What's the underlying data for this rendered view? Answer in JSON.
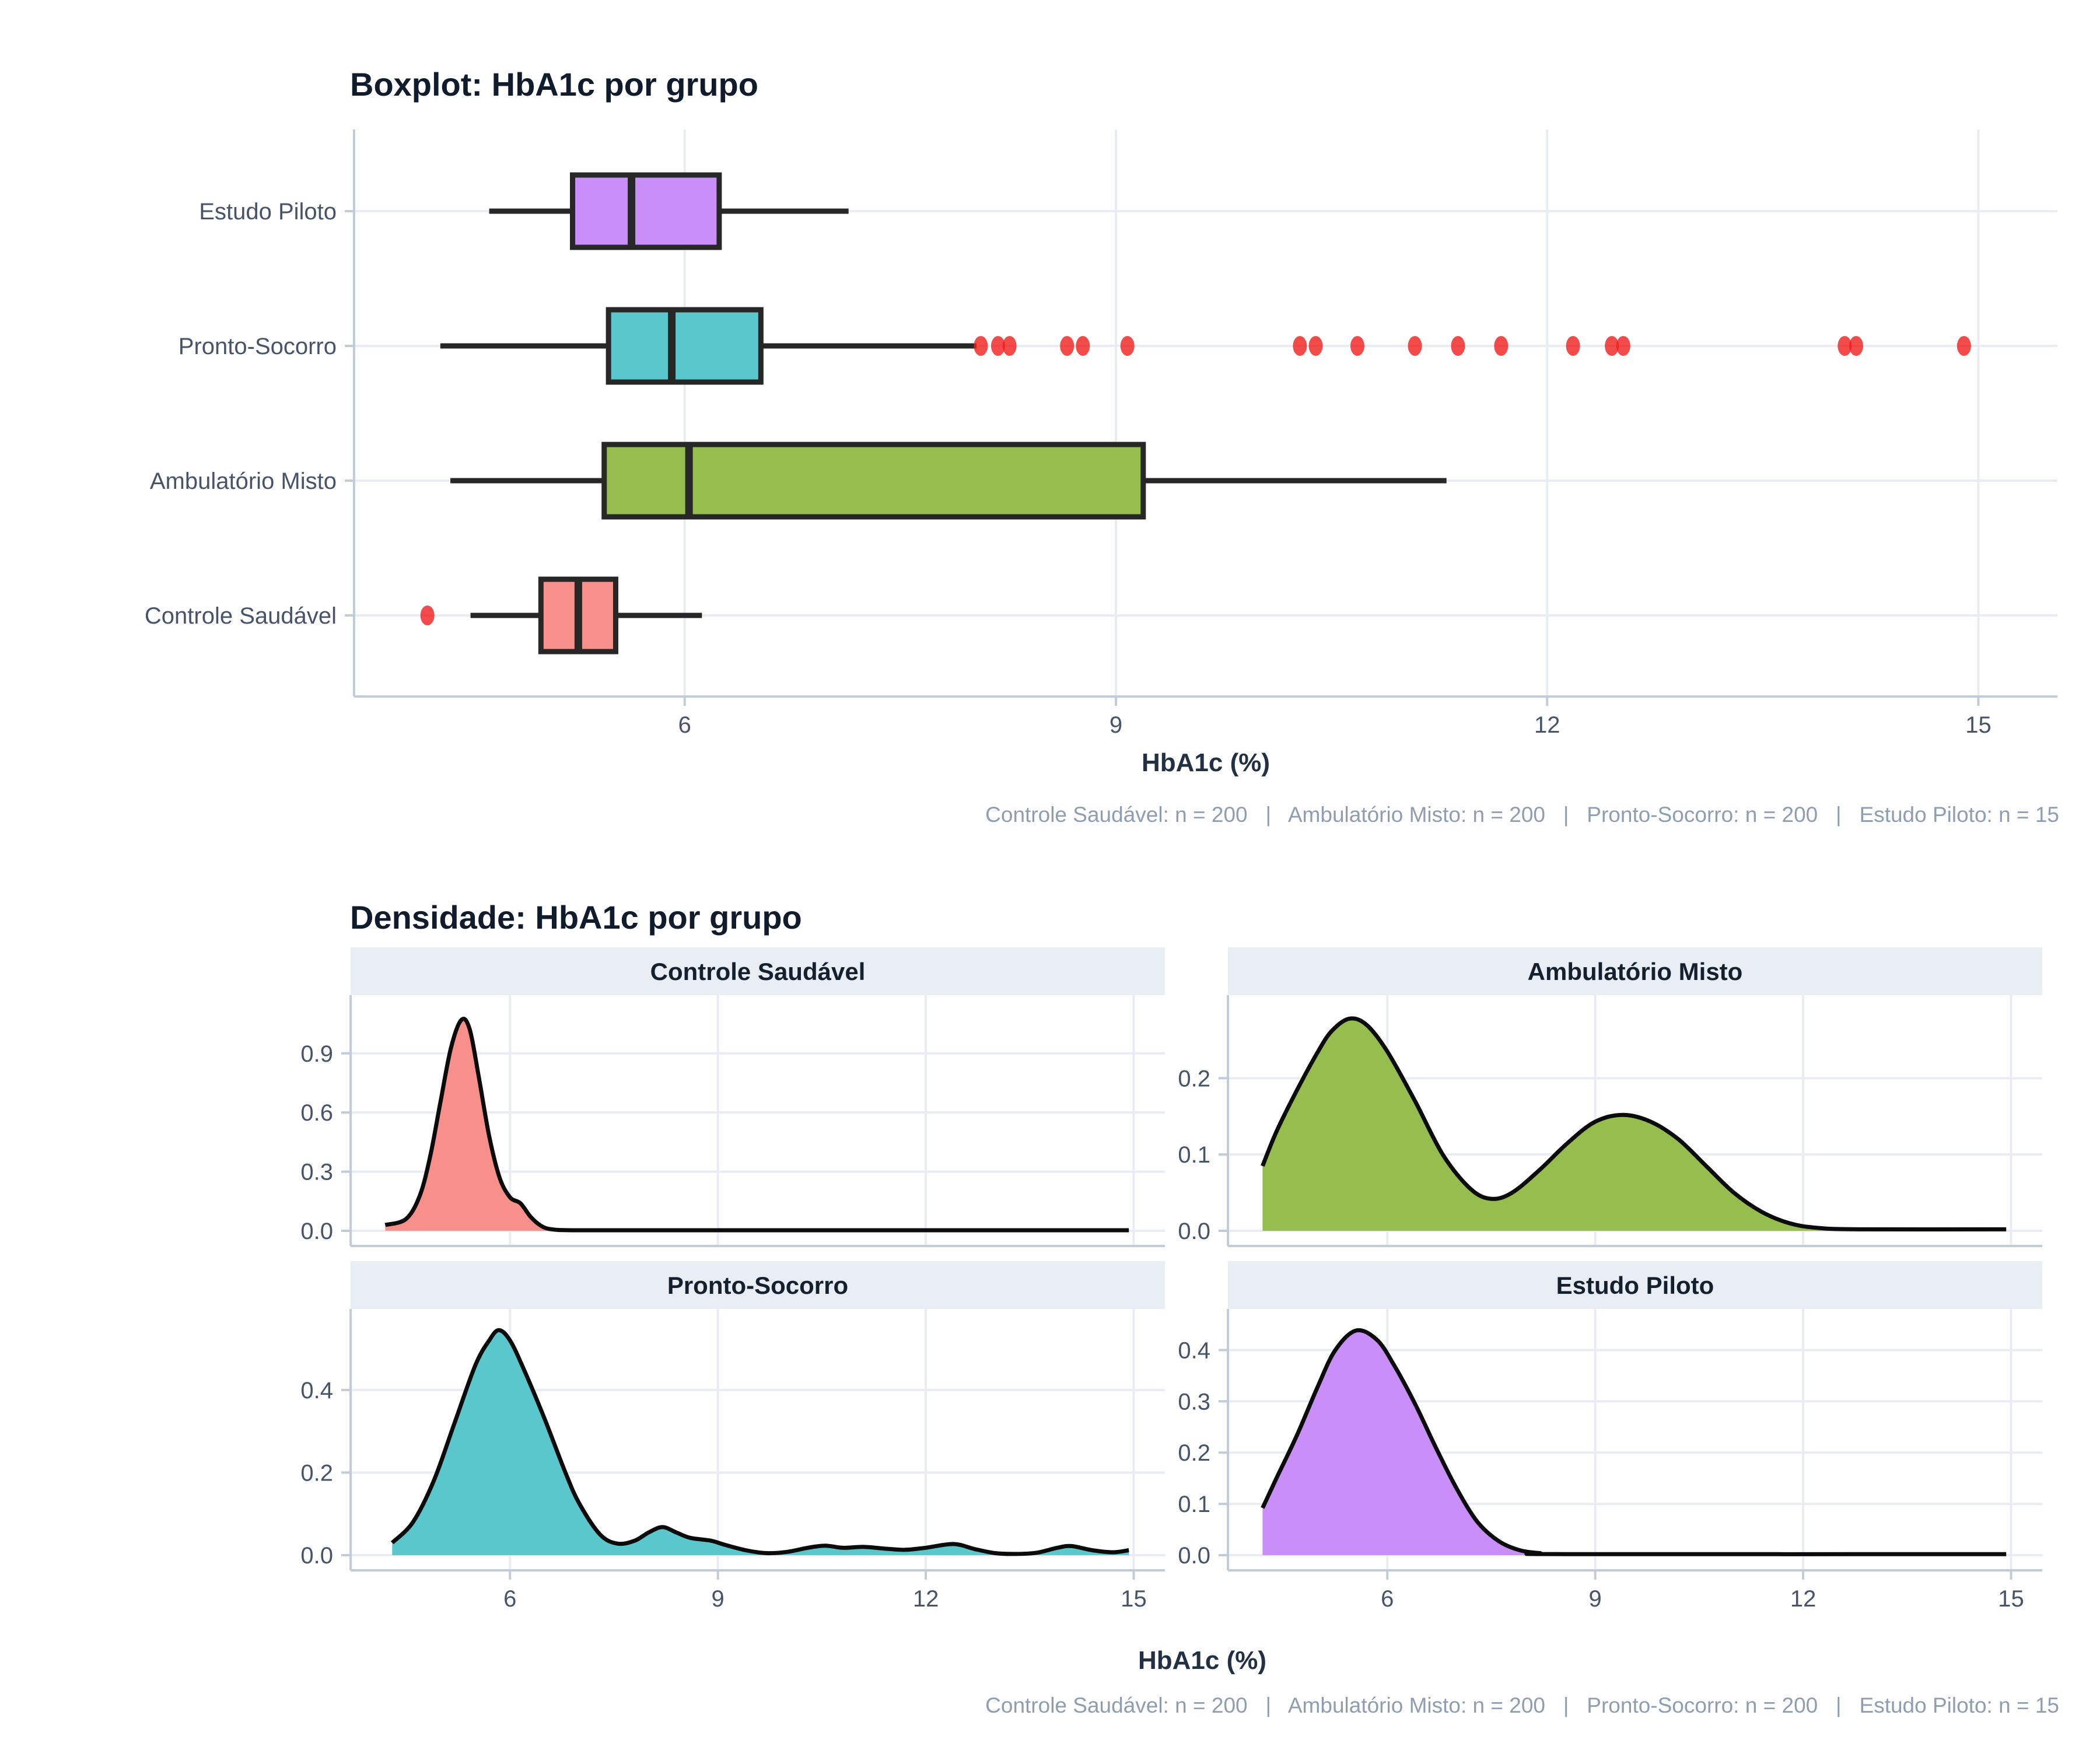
{
  "boxplot_section": {
    "title": "Boxplot: HbA1c por grupo",
    "xlabel": "HbA1c (%)",
    "caption": "Controle Saudável: n = 200   |   Ambulatório Misto: n = 200   |   Pronto-Socorro: n = 200   |   Estudo Piloto: n = 15"
  },
  "density_section": {
    "title": "Densidade: HbA1c por grupo",
    "xlabel": "HbA1c (%)",
    "caption": "Controle Saudável: n = 200   |   Ambulatório Misto: n = 200   |   Pronto-Socorro: n = 200   |   Estudo Piloto: n = 15"
  },
  "colors": {
    "salmon": "#F7908A",
    "green": "#95BE4F",
    "teal": "#5AC7CC",
    "purple": "#CA8EF9",
    "box_stroke": "#272727",
    "outlier_red": "#F01D1D",
    "grid": "#E9EDF3",
    "axis_line": "#C2CBD8",
    "tick_text": "#46536A",
    "strip_bg": "#E9EDF4",
    "strip_text": "#15202E",
    "density_stroke": "#0B0B0B"
  },
  "chart_data": [
    {
      "type": "boxplot",
      "orientation": "horizontal",
      "title": "Boxplot: HbA1c por grupo",
      "xlabel": "HbA1c (%)",
      "ylabel": "",
      "xlim": [
        3.7,
        15.55
      ],
      "x_ticks": [
        6,
        9,
        12,
        15
      ],
      "grid": true,
      "groups": [
        {
          "label": "Estudo Piloto",
          "color_key": "purple",
          "whisker_low": 4.64,
          "q1": 5.22,
          "median": 5.63,
          "q3": 6.24,
          "whisker_high": 7.14,
          "outliers": []
        },
        {
          "label": "Pronto-Socorro",
          "color_key": "teal",
          "whisker_low": 4.3,
          "q1": 5.47,
          "median": 5.91,
          "q3": 6.53,
          "whisker_high": 8.03,
          "outliers": [
            8.06,
            8.18,
            8.26,
            8.66,
            8.77,
            9.08,
            10.28,
            10.39,
            10.68,
            11.08,
            11.38,
            11.68,
            12.18,
            12.45,
            12.53,
            14.07,
            14.15,
            14.9
          ]
        },
        {
          "label": "Ambulatório Misto",
          "color_key": "green",
          "whisker_low": 4.37,
          "q1": 5.44,
          "median": 6.03,
          "q3": 9.19,
          "whisker_high": 11.3,
          "outliers": []
        },
        {
          "label": "Controle Saudável",
          "color_key": "salmon",
          "whisker_low": 4.51,
          "q1": 5.0,
          "median": 5.26,
          "q3": 5.52,
          "whisker_high": 6.12,
          "outliers": [
            4.21
          ]
        }
      ],
      "sample_sizes": {
        "Controle Saudável": 200,
        "Ambulatório Misto": 200,
        "Pronto-Socorro": 200,
        "Estudo Piloto": 15
      }
    },
    {
      "type": "area",
      "subtype": "density-facets",
      "title": "Densidade: HbA1c por grupo",
      "xlabel": "HbA1c (%)",
      "xlim": [
        3.7,
        15.45
      ],
      "x_ticks": [
        6,
        9,
        12,
        15
      ],
      "grid": true,
      "facets": [
        {
          "label": "Controle Saudável",
          "color_key": "salmon",
          "y_ticks": [
            0.0,
            0.3,
            0.6,
            0.9
          ],
          "ymax": 1.13,
          "peak": {
            "x": 5.35,
            "density": 1.08
          },
          "points": [
            [
              4.2,
              0.03
            ],
            [
              4.5,
              0.06
            ],
            [
              4.7,
              0.18
            ],
            [
              4.85,
              0.38
            ],
            [
              5.0,
              0.66
            ],
            [
              5.15,
              0.93
            ],
            [
              5.3,
              1.07
            ],
            [
              5.42,
              1.02
            ],
            [
              5.55,
              0.78
            ],
            [
              5.7,
              0.48
            ],
            [
              5.85,
              0.27
            ],
            [
              6.0,
              0.17
            ],
            [
              6.15,
              0.14
            ],
            [
              6.3,
              0.07
            ],
            [
              6.45,
              0.025
            ],
            [
              6.6,
              0.008
            ],
            [
              6.9,
              0.003
            ],
            [
              8.0,
              0.003
            ],
            [
              10.0,
              0.003
            ],
            [
              12.0,
              0.003
            ],
            [
              14.93,
              0.003
            ]
          ]
        },
        {
          "label": "Ambulatório Misto",
          "color_key": "green",
          "y_ticks": [
            0.0,
            0.1,
            0.2
          ],
          "ymax": 0.292,
          "peak": {
            "x": 5.45,
            "density": 0.278
          },
          "points": [
            [
              4.2,
              0.085
            ],
            [
              4.4,
              0.13
            ],
            [
              4.7,
              0.185
            ],
            [
              5.0,
              0.235
            ],
            [
              5.2,
              0.262
            ],
            [
              5.45,
              0.278
            ],
            [
              5.7,
              0.27
            ],
            [
              6.0,
              0.235
            ],
            [
              6.4,
              0.17
            ],
            [
              6.8,
              0.1
            ],
            [
              7.2,
              0.055
            ],
            [
              7.5,
              0.042
            ],
            [
              7.8,
              0.05
            ],
            [
              8.2,
              0.08
            ],
            [
              8.6,
              0.115
            ],
            [
              9.0,
              0.143
            ],
            [
              9.4,
              0.152
            ],
            [
              9.8,
              0.143
            ],
            [
              10.2,
              0.12
            ],
            [
              10.6,
              0.085
            ],
            [
              11.0,
              0.05
            ],
            [
              11.4,
              0.025
            ],
            [
              11.8,
              0.01
            ],
            [
              12.2,
              0.004
            ],
            [
              12.8,
              0.002
            ],
            [
              14.93,
              0.002
            ]
          ]
        },
        {
          "label": "Pronto-Socorro",
          "color_key": "teal",
          "y_ticks": [
            0.0,
            0.2,
            0.4
          ],
          "ymax": 0.565,
          "peak": {
            "x": 5.84,
            "density": 0.545
          },
          "points": [
            [
              4.3,
              0.03
            ],
            [
              4.6,
              0.08
            ],
            [
              4.9,
              0.18
            ],
            [
              5.2,
              0.32
            ],
            [
              5.5,
              0.46
            ],
            [
              5.7,
              0.52
            ],
            [
              5.84,
              0.545
            ],
            [
              6.0,
              0.52
            ],
            [
              6.2,
              0.45
            ],
            [
              6.5,
              0.33
            ],
            [
              6.8,
              0.2
            ],
            [
              7.0,
              0.125
            ],
            [
              7.3,
              0.05
            ],
            [
              7.55,
              0.028
            ],
            [
              7.8,
              0.035
            ],
            [
              8.0,
              0.055
            ],
            [
              8.2,
              0.068
            ],
            [
              8.4,
              0.055
            ],
            [
              8.6,
              0.042
            ],
            [
              8.9,
              0.035
            ],
            [
              9.1,
              0.025
            ],
            [
              9.4,
              0.012
            ],
            [
              9.7,
              0.005
            ],
            [
              10.0,
              0.008
            ],
            [
              10.3,
              0.018
            ],
            [
              10.55,
              0.023
            ],
            [
              10.8,
              0.018
            ],
            [
              11.1,
              0.02
            ],
            [
              11.4,
              0.016
            ],
            [
              11.7,
              0.013
            ],
            [
              12.0,
              0.018
            ],
            [
              12.4,
              0.027
            ],
            [
              12.7,
              0.015
            ],
            [
              13.0,
              0.005
            ],
            [
              13.3,
              0.003
            ],
            [
              13.6,
              0.006
            ],
            [
              13.9,
              0.018
            ],
            [
              14.1,
              0.022
            ],
            [
              14.4,
              0.012
            ],
            [
              14.7,
              0.007
            ],
            [
              14.93,
              0.012
            ]
          ]
        },
        {
          "label": "Estudo Piloto",
          "color_key": "purple",
          "y_ticks": [
            0.0,
            0.1,
            0.2,
            0.3,
            0.4
          ],
          "ymax": 0.455,
          "peak": {
            "x": 5.55,
            "density": 0.438
          },
          "points": [
            [
              4.2,
              0.092
            ],
            [
              4.4,
              0.15
            ],
            [
              4.7,
              0.235
            ],
            [
              5.0,
              0.33
            ],
            [
              5.25,
              0.4
            ],
            [
              5.55,
              0.438
            ],
            [
              5.85,
              0.42
            ],
            [
              6.1,
              0.37
            ],
            [
              6.4,
              0.295
            ],
            [
              6.7,
              0.21
            ],
            [
              7.0,
              0.13
            ],
            [
              7.3,
              0.065
            ],
            [
              7.6,
              0.028
            ],
            [
              7.9,
              0.01
            ],
            [
              8.2,
              0.004
            ],
            [
              8.6,
              0.002
            ],
            [
              14.93,
              0.002
            ]
          ]
        }
      ]
    }
  ]
}
